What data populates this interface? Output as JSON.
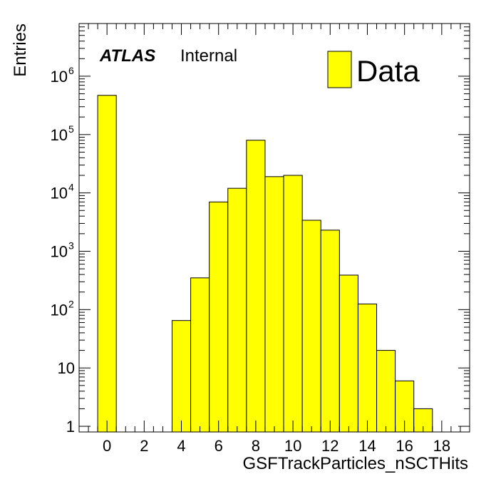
{
  "chart_data": {
    "type": "bar",
    "style": "histogram",
    "xlabel": "GSFTrackParticles_nSCTHits",
    "ylabel": "Entries",
    "xlim": [
      -1.5,
      19.5
    ],
    "ylim": [
      0.8,
      8000000
    ],
    "y_scale": "log",
    "x_ticks": [
      0,
      2,
      4,
      6,
      8,
      10,
      12,
      14,
      16,
      18
    ],
    "y_ticks": [
      {
        "value": 1,
        "label": "1"
      },
      {
        "value": 10,
        "label": "10"
      },
      {
        "value": 100,
        "label": "10",
        "exp": "2"
      },
      {
        "value": 1000,
        "label": "10",
        "exp": "3"
      },
      {
        "value": 10000,
        "label": "10",
        "exp": "4"
      },
      {
        "value": 100000,
        "label": "10",
        "exp": "5"
      },
      {
        "value": 1000000,
        "label": "10",
        "exp": "6"
      }
    ],
    "bin_width": 1,
    "bins": [
      {
        "x": 0,
        "value": 470000
      },
      {
        "x": 4,
        "value": 65
      },
      {
        "x": 5,
        "value": 350
      },
      {
        "x": 6,
        "value": 7000
      },
      {
        "x": 7,
        "value": 12000
      },
      {
        "x": 8,
        "value": 80000
      },
      {
        "x": 9,
        "value": 19000
      },
      {
        "x": 10,
        "value": 20000
      },
      {
        "x": 11,
        "value": 3400
      },
      {
        "x": 12,
        "value": 2300
      },
      {
        "x": 13,
        "value": 390
      },
      {
        "x": 14,
        "value": 125
      },
      {
        "x": 15,
        "value": 20
      },
      {
        "x": 16,
        "value": 6
      },
      {
        "x": 17,
        "value": 2
      }
    ],
    "legend": {
      "label": "Data",
      "color": "#ffff00",
      "placement": "top-right"
    },
    "annotation": {
      "atlas": "ATLAS",
      "status": "Internal"
    },
    "fill_color": "#ffff00",
    "line_color": "#000000"
  }
}
